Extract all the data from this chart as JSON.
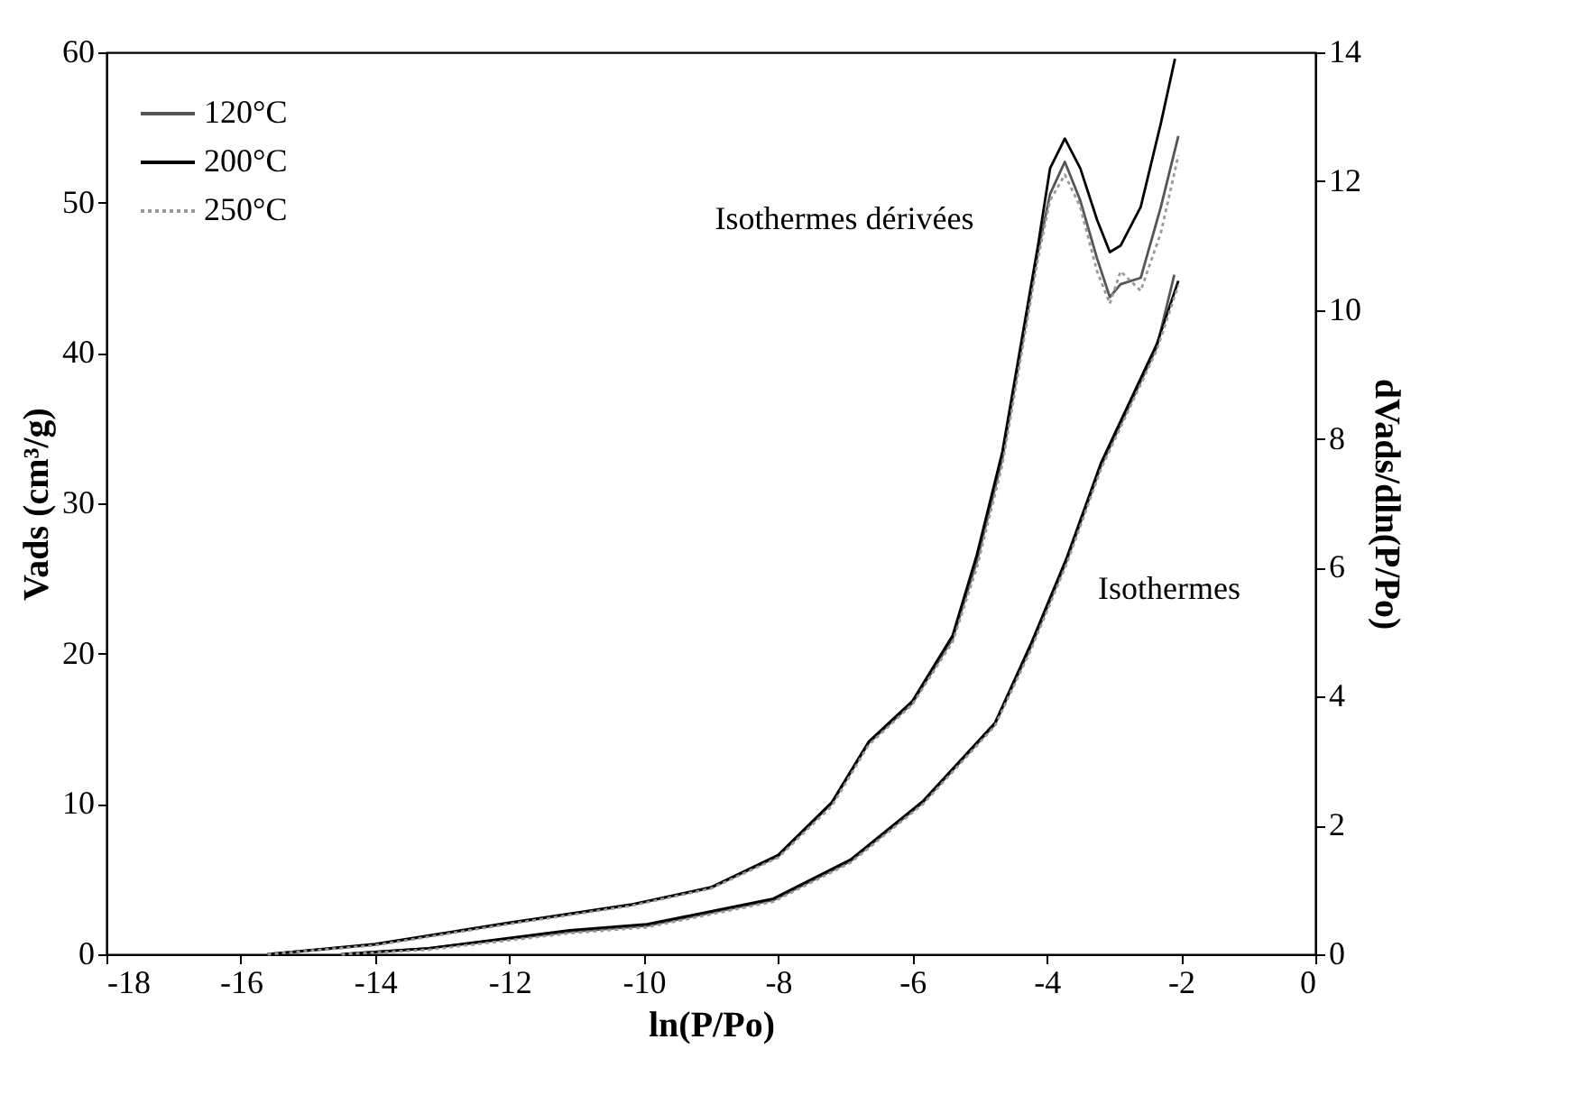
{
  "chart_data": {
    "type": "line",
    "xlabel": "ln(P/Po)",
    "ylabel": "Vads (cm³/g)",
    "y2label": "dVads/dln(P/Po)",
    "xlim": [
      -18,
      0
    ],
    "xticks": [
      -18,
      -16,
      -14,
      -12,
      -10,
      -8,
      -6,
      -4,
      -2,
      0
    ],
    "ylim": [
      0,
      60
    ],
    "yticks": [
      0,
      10,
      20,
      30,
      40,
      50,
      60
    ],
    "y2lim": [
      0,
      14
    ],
    "y2ticks": [
      0,
      2,
      4,
      6,
      8,
      10,
      12,
      14
    ],
    "grid": false,
    "legend": "top left",
    "marker": "none",
    "annotations": [
      "Isothermes dérivées",
      "Isothermes"
    ],
    "series": [
      {
        "color": "#555555",
        "line_style": "solid",
        "x": [
          -14.5,
          -13.2,
          -11.1,
          -9.95,
          -8.07,
          -6.92,
          -5.84,
          -4.77,
          -4.24,
          -3.7,
          -3.19,
          -2.36,
          -2.1
        ],
        "values": [
          0,
          0.4,
          1.5,
          1.9,
          3.6,
          6.2,
          10.1,
          15.3,
          20.4,
          26.2,
          32.5,
          40.4,
          45.2
        ]
      },
      {
        "color": "#000000",
        "line_style": "solid",
        "x": [
          -14.5,
          -13.2,
          -11.1,
          -9.95,
          -8.07,
          -6.92,
          -5.84,
          -4.77,
          -4.24,
          -3.7,
          -3.19,
          -2.36,
          -2.04
        ],
        "values": [
          0,
          0.4,
          1.6,
          2.0,
          3.7,
          6.3,
          10.2,
          15.4,
          20.6,
          26.4,
          32.7,
          40.6,
          44.8
        ]
      },
      {
        "color": "#999999",
        "line_style": "dotted",
        "x": [
          -14.5,
          -13.2,
          -11.1,
          -9.95,
          -8.07,
          -6.92,
          -5.84,
          -4.77,
          -4.24,
          -3.7,
          -3.19,
          -2.36,
          -2.04
        ],
        "values": [
          0,
          0.3,
          1.4,
          1.8,
          3.5,
          6.1,
          10.0,
          15.2,
          20.2,
          26.0,
          32.3,
          40.2,
          44.5
        ]
      },
      {
        "name": "120°C",
        "color": "#555555",
        "line_style": "solid",
        "axis": "y2",
        "x": [
          -15.6,
          -14,
          -12,
          -10.2,
          -9,
          -8,
          -7.2,
          -6.65,
          -6,
          -5.4,
          -5.04,
          -4.66,
          -4.13,
          -3.95,
          -3.73,
          -3.5,
          -3.25,
          -3.06,
          -2.9,
          -2.6,
          -2.3,
          -2.04
        ],
        "values": [
          0,
          0.15,
          0.48,
          0.76,
          1.03,
          1.52,
          2.34,
          3.28,
          3.9,
          4.9,
          6.1,
          7.7,
          10.9,
          11.8,
          12.3,
          11.7,
          10.8,
          10.2,
          10.4,
          10.5,
          11.6,
          12.7
        ]
      },
      {
        "name": "200°C",
        "color": "#000000",
        "line_style": "solid",
        "axis": "y2",
        "x": [
          -15.6,
          -14,
          -12,
          -10.2,
          -9,
          -8,
          -7.2,
          -6.65,
          -6,
          -5.4,
          -5.04,
          -4.66,
          -4.13,
          -3.95,
          -3.73,
          -3.5,
          -3.25,
          -3.06,
          -2.9,
          -2.6,
          -2.3,
          -2.09
        ],
        "values": [
          0,
          0.16,
          0.49,
          0.77,
          1.04,
          1.54,
          2.36,
          3.3,
          3.93,
          4.95,
          6.2,
          7.8,
          11.0,
          12.2,
          12.66,
          12.2,
          11.4,
          10.9,
          11.0,
          11.6,
          12.9,
          13.9
        ]
      },
      {
        "name": "250°C",
        "color": "#999999",
        "line_style": "dotted",
        "axis": "y2",
        "x": [
          -15.6,
          -14,
          -12,
          -10.2,
          -9,
          -8,
          -7.2,
          -6.65,
          -6,
          -5.4,
          -5.04,
          -4.66,
          -4.13,
          -3.95,
          -3.73,
          -3.5,
          -3.25,
          -3.06,
          -2.9,
          -2.6,
          -2.3,
          -2.04
        ],
        "values": [
          0,
          0.14,
          0.47,
          0.75,
          1.02,
          1.5,
          2.3,
          3.25,
          3.88,
          4.85,
          6.0,
          7.6,
          10.8,
          11.7,
          12.1,
          11.6,
          10.6,
          10.1,
          10.6,
          10.3,
          11.2,
          12.4
        ]
      }
    ]
  }
}
